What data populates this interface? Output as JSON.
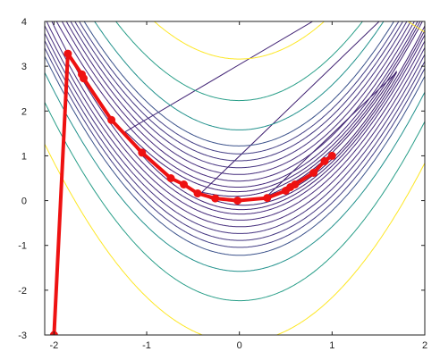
{
  "chart_data": {
    "type": "line",
    "title": "",
    "xlabel": "",
    "ylabel": "",
    "xlim": [
      -2.1,
      2
    ],
    "ylim": [
      -3,
      4
    ],
    "grid": false,
    "xticks": [
      {
        "value": -2,
        "label": "-2"
      },
      {
        "value": -1,
        "label": "-1"
      },
      {
        "value": 0,
        "label": "0"
      },
      {
        "value": 1,
        "label": "1"
      },
      {
        "value": 2,
        "label": "2"
      }
    ],
    "yticks": [
      {
        "value": -3,
        "label": "-3"
      },
      {
        "value": -2,
        "label": "-2"
      },
      {
        "value": -1,
        "label": "-1"
      },
      {
        "value": 0,
        "label": "0"
      },
      {
        "value": 1,
        "label": "1"
      },
      {
        "value": 2,
        "label": "2"
      },
      {
        "value": 3,
        "label": "3"
      },
      {
        "value": 4,
        "label": "4"
      }
    ],
    "contours": {
      "function": "rosenbrock",
      "levels": [
        {
          "value": 0.5,
          "color": "#3a1b6a"
        },
        {
          "value": 2,
          "color": "#3e1f70"
        },
        {
          "value": 5,
          "color": "#432576"
        },
        {
          "value": 10,
          "color": "#45297b"
        },
        {
          "value": 20,
          "color": "#472c7c"
        },
        {
          "value": 35,
          "color": "#472f7d"
        },
        {
          "value": 55,
          "color": "#463480"
        },
        {
          "value": 80,
          "color": "#453781"
        },
        {
          "value": 110,
          "color": "#433e85"
        },
        {
          "value": 150,
          "color": "#3b528b"
        },
        {
          "value": 250,
          "color": "#21918c"
        },
        {
          "value": 500,
          "color": "#2a9f89"
        },
        {
          "value": 1000,
          "color": "#fde725"
        }
      ]
    },
    "series": [
      {
        "color": "#ee1111",
        "x": [
          -2.0,
          -1.85,
          -1.7,
          -1.68,
          -1.38,
          -1.05,
          -0.74,
          -0.6,
          -0.45,
          -0.26,
          -0.02,
          0.3,
          0.5,
          0.55,
          0.6,
          0.8,
          0.92,
          1.0
        ],
        "y": [
          -3.0,
          3.28,
          2.82,
          2.73,
          1.8,
          1.07,
          0.5,
          0.36,
          0.16,
          0.05,
          0.0,
          0.06,
          0.22,
          0.3,
          0.36,
          0.62,
          0.88,
          1.0
        ]
      }
    ]
  }
}
